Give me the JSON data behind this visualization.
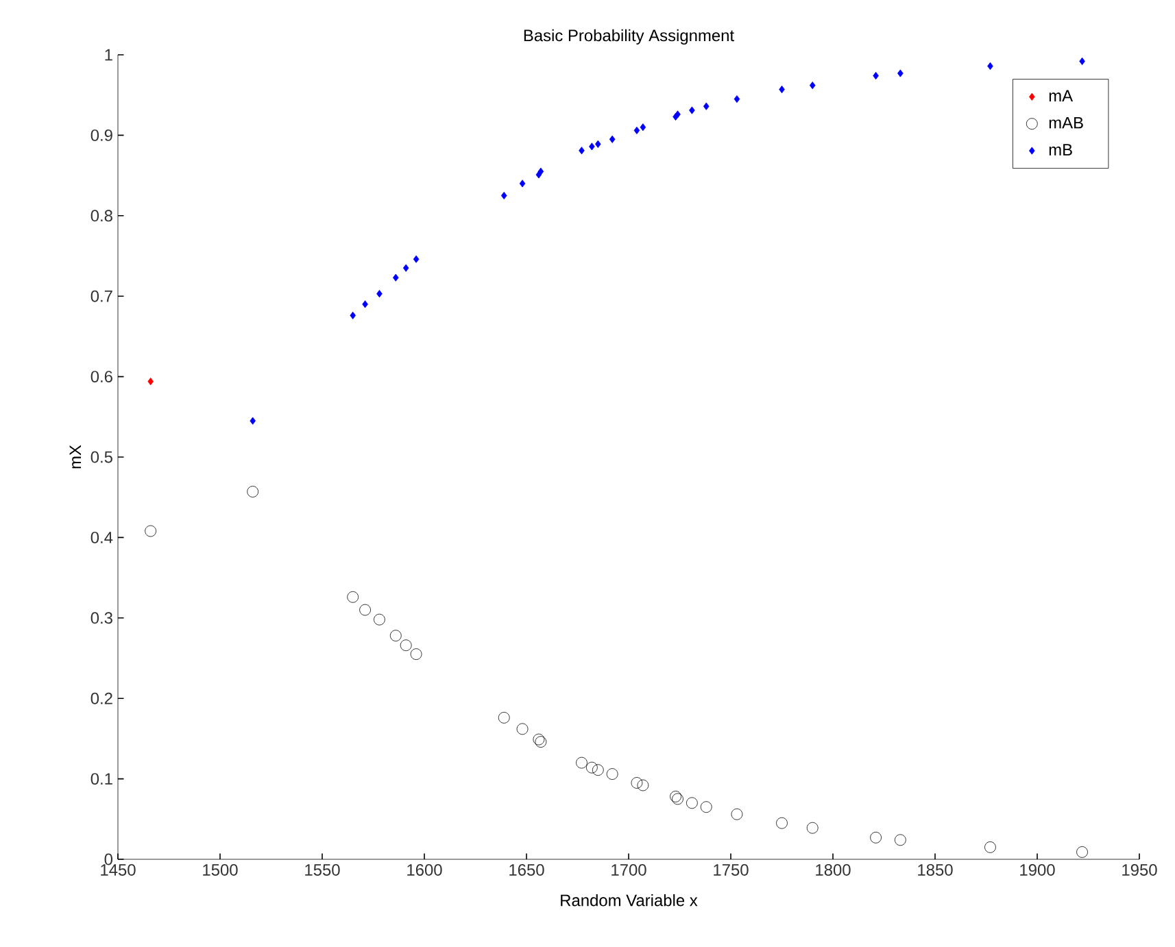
{
  "chart_data": {
    "type": "scatter",
    "title": "Basic Probability Assignment",
    "xlabel": "Random Variable x",
    "ylabel": "mX",
    "xlim": [
      1450,
      1950
    ],
    "ylim": [
      0,
      1
    ],
    "xticks": [
      1450,
      1500,
      1550,
      1600,
      1650,
      1700,
      1750,
      1800,
      1850,
      1900,
      1950
    ],
    "yticks": [
      0,
      0.1,
      0.2,
      0.3,
      0.4,
      0.5,
      0.6,
      0.7,
      0.8,
      0.9,
      1
    ],
    "grid": false,
    "legend": "top right",
    "series": [
      {
        "name": "mA",
        "color": "#ff0000",
        "marker": "diamond",
        "x": [
          1466
        ],
        "values": [
          0.594
        ]
      },
      {
        "name": "mAB",
        "color": "#000000",
        "marker": "circle",
        "x": [
          1466,
          1516,
          1565,
          1571,
          1578,
          1586,
          1591,
          1596,
          1639,
          1648,
          1656,
          1657,
          1677,
          1682,
          1685,
          1692,
          1704,
          1707,
          1723,
          1724,
          1731,
          1738,
          1753,
          1775,
          1790,
          1821,
          1833,
          1877,
          1922
        ],
        "values": [
          0.408,
          0.457,
          0.326,
          0.31,
          0.298,
          0.278,
          0.266,
          0.255,
          0.176,
          0.162,
          0.149,
          0.146,
          0.12,
          0.114,
          0.111,
          0.106,
          0.095,
          0.092,
          0.078,
          0.075,
          0.07,
          0.065,
          0.056,
          0.045,
          0.039,
          0.027,
          0.024,
          0.015,
          0.009
        ]
      },
      {
        "name": "mB",
        "color": "#0000ff",
        "marker": "diamond",
        "x": [
          1516,
          1565,
          1571,
          1578,
          1586,
          1591,
          1596,
          1639,
          1648,
          1656,
          1657,
          1677,
          1682,
          1685,
          1692,
          1704,
          1707,
          1723,
          1724,
          1731,
          1738,
          1753,
          1775,
          1790,
          1821,
          1833,
          1877,
          1922
        ],
        "values": [
          0.545,
          0.676,
          0.69,
          0.703,
          0.723,
          0.735,
          0.746,
          0.825,
          0.84,
          0.851,
          0.855,
          0.881,
          0.886,
          0.889,
          0.895,
          0.906,
          0.91,
          0.923,
          0.926,
          0.931,
          0.936,
          0.945,
          0.957,
          0.962,
          0.974,
          0.977,
          0.986,
          0.992
        ]
      }
    ]
  }
}
